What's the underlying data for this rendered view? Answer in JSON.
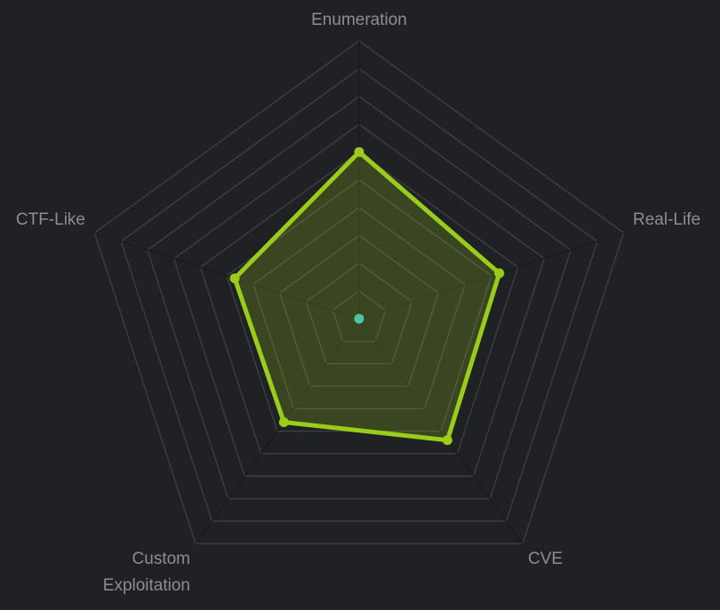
{
  "chart_data": {
    "type": "radar",
    "categories": [
      "Enumeration",
      "Real-Life",
      "CVE",
      "Custom Exploitation",
      "CTF-Like"
    ],
    "values": [
      60,
      53,
      54,
      46,
      47
    ],
    "color": "#9acd1a",
    "rlim": [
      0,
      100
    ],
    "rticks": [
      10,
      20,
      30,
      40,
      50,
      60,
      70,
      80,
      90,
      100
    ],
    "grid": true
  }
}
